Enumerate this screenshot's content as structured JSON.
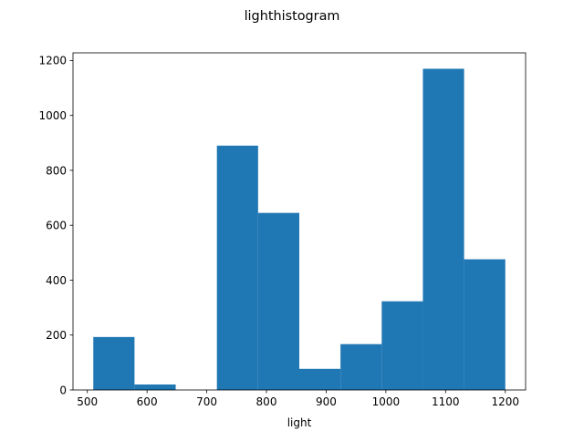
{
  "chart_data": {
    "type": "bar",
    "title": "lighthistogram",
    "xlabel": "light",
    "ylabel": "",
    "bins": [
      {
        "start": 510,
        "end": 579,
        "count": 193
      },
      {
        "start": 579,
        "end": 648,
        "count": 20
      },
      {
        "start": 648,
        "end": 717,
        "count": 0
      },
      {
        "start": 717,
        "end": 786,
        "count": 890
      },
      {
        "start": 786,
        "end": 855,
        "count": 645
      },
      {
        "start": 855,
        "end": 924,
        "count": 77
      },
      {
        "start": 924,
        "end": 993,
        "count": 167
      },
      {
        "start": 993,
        "end": 1062,
        "count": 323
      },
      {
        "start": 1062,
        "end": 1131,
        "count": 1170
      },
      {
        "start": 1131,
        "end": 1200,
        "count": 476
      }
    ],
    "xlim": [
      476,
      1234
    ],
    "ylim": [
      0,
      1228
    ],
    "xticks": [
      500,
      600,
      700,
      800,
      900,
      1000,
      1100,
      1200
    ],
    "yticks": [
      0,
      200,
      400,
      600,
      800,
      1000,
      1200
    ],
    "grid": false,
    "legend": "none",
    "bar_color": "#1f77b4"
  }
}
